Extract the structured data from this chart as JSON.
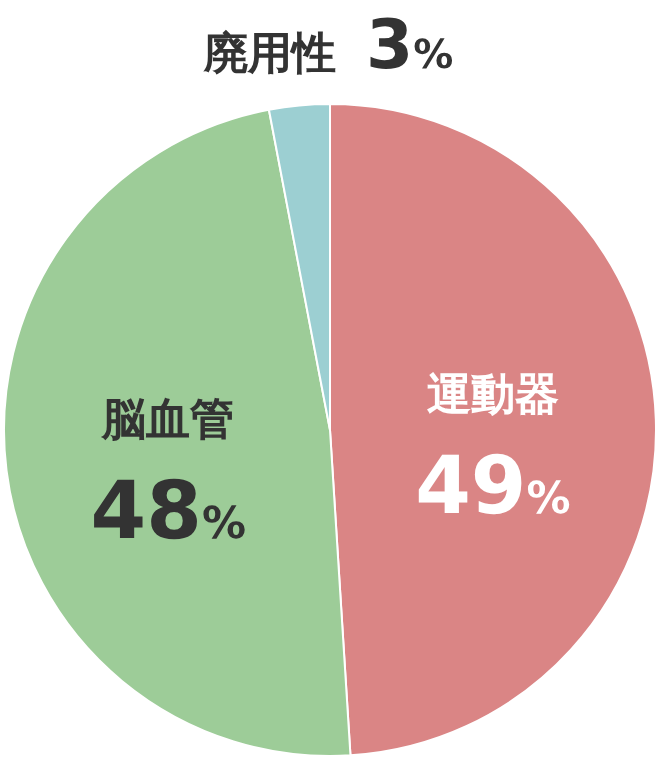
{
  "chart_data": {
    "type": "pie",
    "categories": [
      "運動器",
      "脳血管",
      "廃用性"
    ],
    "values": [
      49,
      48,
      3
    ],
    "colors": [
      "#da8585",
      "#9dcc98",
      "#9ccfd2"
    ],
    "value_labels": [
      "49%",
      "48%",
      "3%"
    ]
  }
}
